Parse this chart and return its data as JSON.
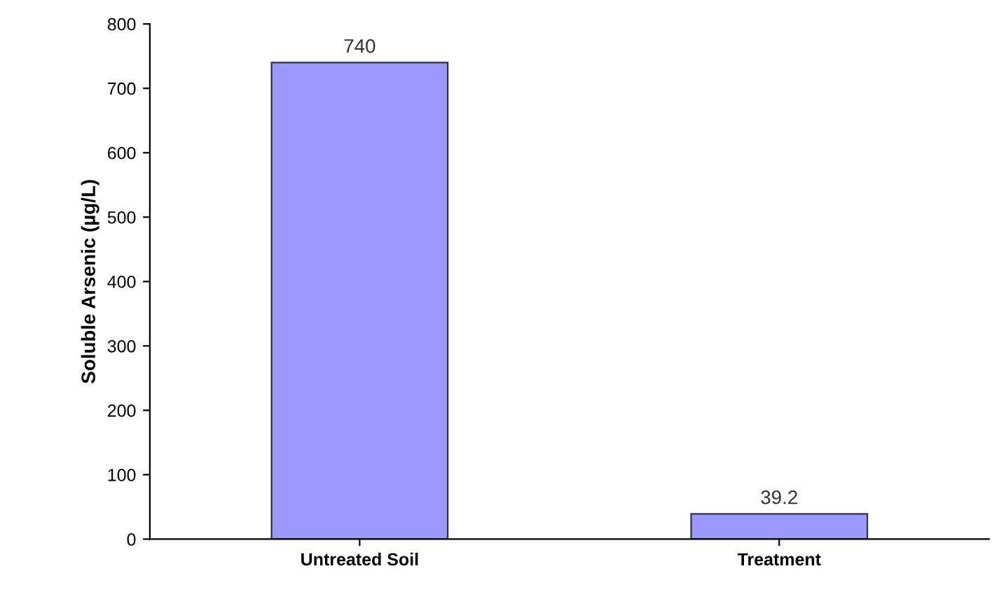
{
  "chart_data": {
    "type": "bar",
    "ylabel": "Soluble Arsenic (µg/L)",
    "categories": [
      "Untreated Soil",
      "Treatment"
    ],
    "values": [
      740,
      39.2
    ],
    "color": "#9999ff",
    "ylim": [
      0,
      800
    ],
    "yticks": [
      0,
      100,
      200,
      300,
      400,
      500,
      600,
      700,
      800
    ],
    "data_labels": true,
    "grid": false,
    "legend": false
  }
}
